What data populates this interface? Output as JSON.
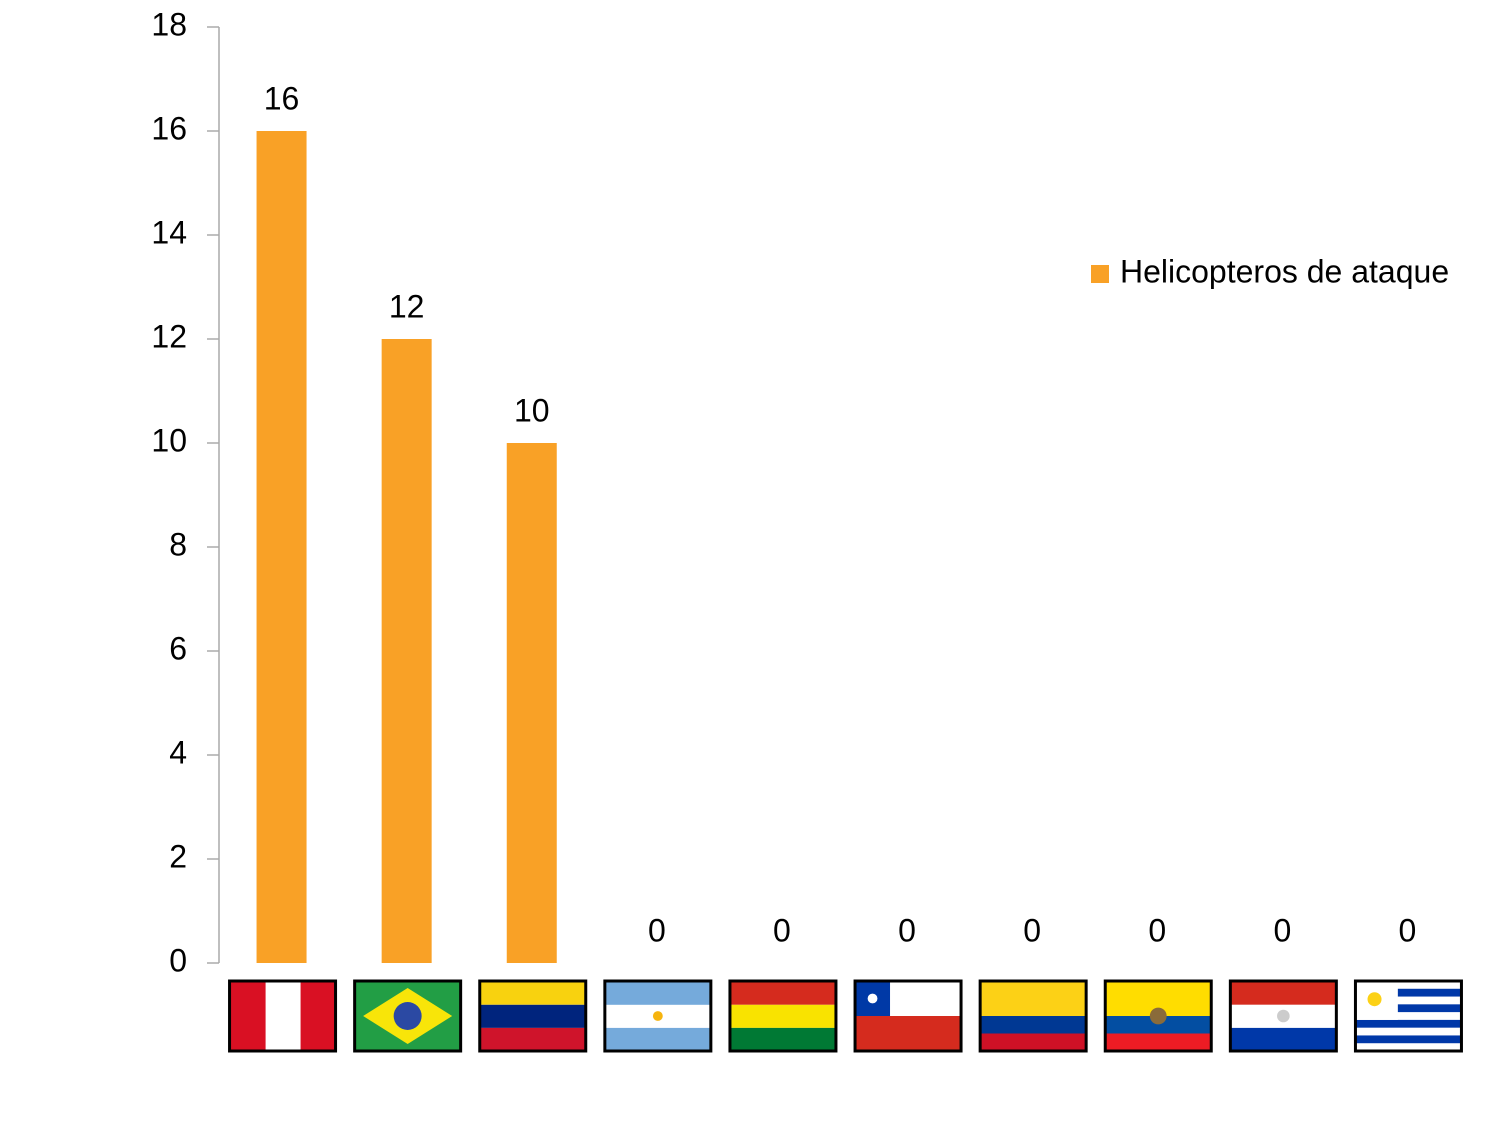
{
  "chart_data": {
    "type": "bar",
    "categories": [
      null,
      null,
      null,
      null,
      null,
      null,
      null,
      null,
      null,
      null
    ],
    "series": [
      {
        "name": "Helicopteros de ataque",
        "color": "#f9a126",
        "values": [
          16,
          12,
          10,
          0,
          0,
          0,
          0,
          0,
          0,
          0
        ]
      }
    ],
    "ylim": [
      0,
      18
    ],
    "yticks": [
      0,
      2,
      4,
      6,
      8,
      10,
      12,
      14,
      16,
      18
    ],
    "grid": false,
    "legend": "right"
  }
}
